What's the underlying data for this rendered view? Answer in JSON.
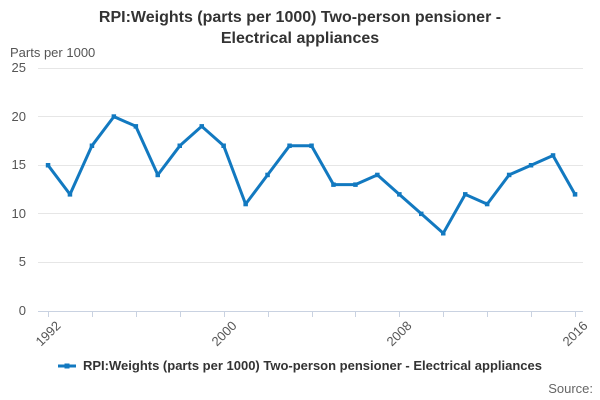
{
  "header": {
    "title_line1": "RPI:Weights (parts per 1000) Two-person pensioner -",
    "title_line2": "Electrical appliances"
  },
  "chart_data": {
    "type": "line",
    "title": "RPI:Weights (parts per 1000) Two-person pensioner - Electrical appliances",
    "ylabel": "Parts per 1000",
    "xlabel": "",
    "x": [
      1992,
      1993,
      1994,
      1995,
      1996,
      1997,
      1998,
      1999,
      2000,
      2001,
      2002,
      2003,
      2004,
      2005,
      2006,
      2007,
      2008,
      2009,
      2010,
      2011,
      2012,
      2013,
      2014,
      2015,
      2016
    ],
    "values": [
      15,
      12,
      17,
      20,
      19,
      14,
      17,
      19,
      17,
      11,
      14,
      17,
      17,
      13,
      13,
      14,
      12,
      10,
      8,
      12,
      11,
      14,
      15,
      16,
      12
    ],
    "series_name": "RPI:Weights (parts per 1000) Two-person pensioner - Electrical appliances",
    "ylim": [
      0,
      25
    ],
    "yticks": [
      0,
      5,
      10,
      15,
      20,
      25
    ],
    "xtick_step_years": 2,
    "x_labeled_ticks": [
      1992,
      2000,
      2008,
      2016
    ],
    "xtick_labels": [
      "1992",
      "2000",
      "2008",
      "2016"
    ],
    "grid": "horizontal",
    "legend_position": "bottom",
    "line_color": "#1279c0",
    "axis_color": "#c9d2e1",
    "grid_color": "#e6e6e6"
  },
  "legend": {
    "label": "RPI:Weights (parts per 1000) Two-person pensioner - Electrical appliances"
  },
  "footer": {
    "source_label": "Source:"
  }
}
